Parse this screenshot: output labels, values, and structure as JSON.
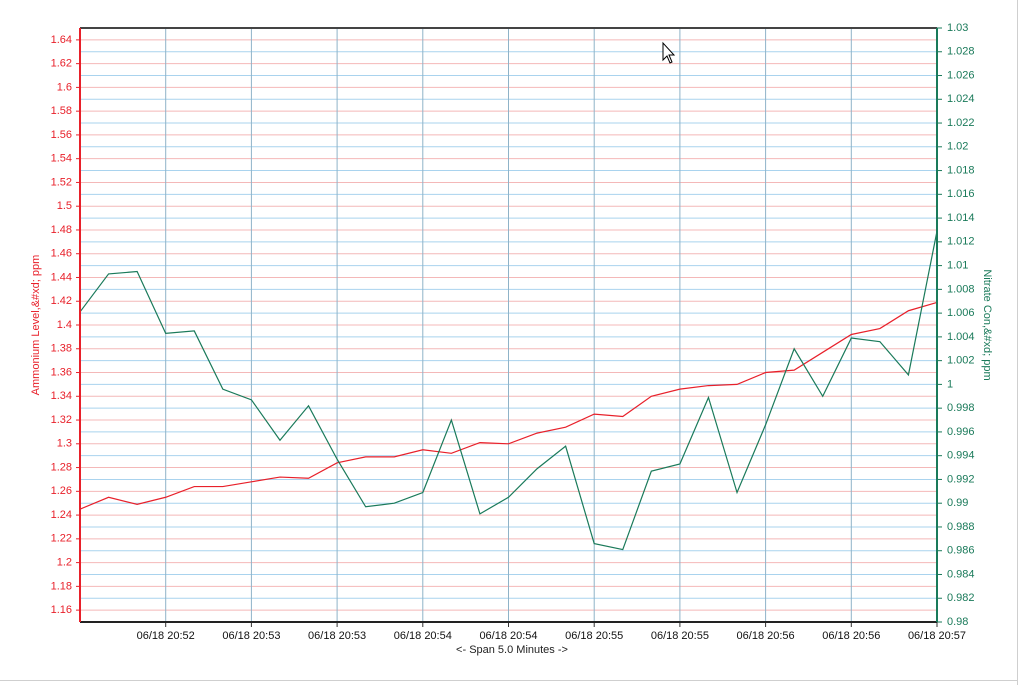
{
  "chart_data": {
    "type": "line",
    "x_label": "<- Span 5.0 Minutes ->",
    "y_label": "Ammonium Level,&#xd; ppm",
    "y2_label": "Nitrate Con,&#xd; ppm",
    "categories": [
      null,
      null,
      null,
      "06/18 20:52",
      null,
      null,
      "06/18 20:53",
      null,
      null,
      "06/18 20:53",
      null,
      null,
      "06/18 20:54",
      null,
      null,
      "06/18 20:54",
      null,
      null,
      "06/18 20:55",
      null,
      null,
      "06/18 20:55",
      null,
      null,
      "06/18 20:56",
      null,
      null,
      "06/18 20:56",
      null,
      null,
      "06/18 20:57"
    ],
    "series": [
      {
        "name": "Ammonium Level",
        "color": "#e8202a",
        "axis": "y",
        "values": [
          1.245,
          1.255,
          1.249,
          1.255,
          1.264,
          1.264,
          1.268,
          1.272,
          1.271,
          1.284,
          1.289,
          1.289,
          1.295,
          1.292,
          1.301,
          1.3,
          1.309,
          1.314,
          1.325,
          1.323,
          1.34,
          1.346,
          1.349,
          1.35,
          1.36,
          1.362,
          1.377,
          1.392,
          1.397,
          1.412,
          1.419
        ]
      },
      {
        "name": "Nitrate Con",
        "color": "#1a7a5a",
        "axis": "y2",
        "values": [
          1.0061,
          1.0093,
          1.0095,
          1.0043,
          1.0045,
          0.9996,
          0.9987,
          0.9953,
          0.9982,
          0.9937,
          0.9897,
          0.99,
          0.9909,
          0.997,
          0.9891,
          0.9905,
          0.9929,
          0.9948,
          0.9866,
          0.9861,
          0.9927,
          0.9933,
          0.9989,
          0.9909,
          0.9966,
          1.003,
          0.999,
          1.0039,
          1.0036,
          1.0008,
          1.0129
        ]
      }
    ],
    "ylim": [
      1.15,
      1.65
    ],
    "yticks": [
      1.16,
      1.18,
      1.2,
      1.22,
      1.24,
      1.26,
      1.28,
      1.3,
      1.32,
      1.34,
      1.36,
      1.38,
      1.4,
      1.42,
      1.44,
      1.46,
      1.48,
      1.5,
      1.52,
      1.54,
      1.56,
      1.58,
      1.6,
      1.62,
      1.64
    ],
    "y2lim": [
      0.98,
      1.03
    ],
    "y2ticks": [
      0.98,
      0.982,
      0.984,
      0.986,
      0.988,
      0.99,
      0.992,
      0.994,
      0.996,
      0.998,
      1,
      1.002,
      1.004,
      1.006,
      1.008,
      1.01,
      1.012,
      1.014,
      1.016,
      1.018,
      1.02,
      1.022,
      1.024,
      1.026,
      1.028,
      1.03
    ],
    "y_color": "#e8202a",
    "y2_color": "#1a7a5a",
    "grid": true
  }
}
